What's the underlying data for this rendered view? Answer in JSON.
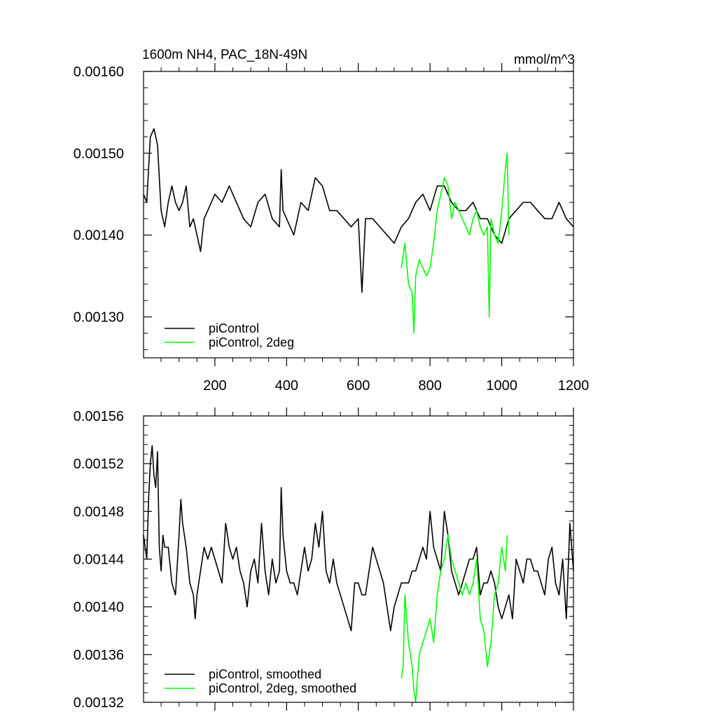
{
  "chart_data": [
    {
      "type": "line",
      "title": "1600m NH4, PAC_18N-49N",
      "units": "mmol/m^3",
      "xlim": [
        1,
        1200
      ],
      "ylim": [
        0.00125,
        0.0016
      ],
      "x_ticks": [
        200,
        400,
        600,
        800,
        1000,
        1200
      ],
      "x_tick_labels": [
        "200",
        "400",
        "600",
        "800",
        "1000",
        "1200"
      ],
      "y_ticks": [
        0.0013,
        0.0014,
        0.0015,
        0.0016
      ],
      "y_tick_labels": [
        "0.00130",
        "0.00140",
        "0.00150",
        "0.00160"
      ],
      "legend_position": "bottom-left",
      "series": [
        {
          "name": "piControl",
          "color": "#000000",
          "x": [
            1,
            10,
            20,
            30,
            40,
            50,
            60,
            70,
            80,
            90,
            100,
            110,
            120,
            130,
            140,
            150,
            160,
            170,
            180,
            200,
            220,
            240,
            260,
            280,
            300,
            320,
            340,
            360,
            380,
            385,
            390,
            400,
            420,
            440,
            460,
            480,
            500,
            520,
            540,
            560,
            580,
            600,
            610,
            620,
            640,
            660,
            680,
            700,
            720,
            740,
            760,
            780,
            800,
            820,
            840,
            860,
            880,
            900,
            920,
            940,
            960,
            980,
            1000,
            1020,
            1040,
            1060,
            1080,
            1100,
            1120,
            1140,
            1160,
            1180,
            1200
          ],
          "values": [
            0.00145,
            0.00144,
            0.00152,
            0.00153,
            0.00151,
            0.00143,
            0.00141,
            0.00144,
            0.00146,
            0.00144,
            0.00143,
            0.00144,
            0.00146,
            0.00141,
            0.00142,
            0.0014,
            0.00138,
            0.00142,
            0.00143,
            0.00145,
            0.00144,
            0.00146,
            0.00144,
            0.00142,
            0.00141,
            0.00144,
            0.00145,
            0.00142,
            0.00141,
            0.00148,
            0.00143,
            0.00142,
            0.0014,
            0.00144,
            0.00143,
            0.00147,
            0.00146,
            0.00143,
            0.00143,
            0.00142,
            0.00141,
            0.00142,
            0.00133,
            0.00142,
            0.00142,
            0.00141,
            0.0014,
            0.00139,
            0.00141,
            0.00142,
            0.00144,
            0.00145,
            0.00143,
            0.00146,
            0.00146,
            0.00144,
            0.00143,
            0.00143,
            0.00144,
            0.00142,
            0.00142,
            0.0014,
            0.00139,
            0.00142,
            0.00143,
            0.00144,
            0.00144,
            0.00143,
            0.00142,
            0.00142,
            0.00144,
            0.00142,
            0.00141
          ]
        },
        {
          "name": "piControl, 2deg",
          "color": "#00ff00",
          "x": [
            720,
            730,
            740,
            750,
            755,
            760,
            770,
            780,
            790,
            800,
            810,
            820,
            830,
            840,
            850,
            860,
            870,
            880,
            890,
            900,
            910,
            920,
            930,
            940,
            950,
            960,
            965,
            970,
            980,
            990,
            1000,
            1010,
            1015,
            1020
          ],
          "values": [
            0.00136,
            0.00139,
            0.00134,
            0.00133,
            0.00128,
            0.00135,
            0.00137,
            0.00136,
            0.00135,
            0.00136,
            0.00139,
            0.00143,
            0.00145,
            0.00147,
            0.00146,
            0.00142,
            0.00144,
            0.00143,
            0.00142,
            0.00141,
            0.0014,
            0.00142,
            0.00143,
            0.00141,
            0.0014,
            0.00141,
            0.0013,
            0.00142,
            0.0014,
            0.00139,
            0.00143,
            0.00148,
            0.0015,
            0.0014
          ]
        }
      ]
    },
    {
      "type": "line",
      "title": "",
      "xlim": [
        1,
        1200
      ],
      "ylim": [
        0.00132,
        0.00156
      ],
      "x_ticks": [
        200,
        400,
        600,
        800,
        1000,
        1200
      ],
      "y_ticks": [
        0.00132,
        0.00136,
        0.0014,
        0.00144,
        0.00148,
        0.00152,
        0.00156
      ],
      "y_tick_labels": [
        "0.00132",
        "0.00136",
        "0.00140",
        "0.00144",
        "0.00148",
        "0.00152",
        "0.00156"
      ],
      "legend_position": "bottom-left",
      "series": [
        {
          "name": "piControl, smoothed",
          "color": "#000000",
          "x": [
            1,
            10,
            15,
            20,
            25,
            30,
            35,
            40,
            45,
            50,
            55,
            60,
            70,
            80,
            90,
            100,
            105,
            110,
            120,
            130,
            140,
            145,
            150,
            160,
            170,
            180,
            190,
            200,
            210,
            220,
            230,
            240,
            250,
            260,
            270,
            280,
            290,
            300,
            310,
            320,
            330,
            340,
            350,
            360,
            370,
            380,
            385,
            390,
            400,
            410,
            420,
            430,
            440,
            450,
            460,
            470,
            480,
            490,
            500,
            510,
            520,
            530,
            540,
            550,
            560,
            570,
            580,
            590,
            600,
            610,
            620,
            630,
            640,
            650,
            660,
            670,
            680,
            690,
            700,
            710,
            720,
            730,
            740,
            750,
            760,
            770,
            780,
            790,
            800,
            810,
            820,
            830,
            840,
            850,
            860,
            870,
            880,
            890,
            900,
            910,
            920,
            930,
            940,
            950,
            960,
            970,
            980,
            990,
            1000,
            1010,
            1020,
            1030,
            1040,
            1050,
            1060,
            1070,
            1080,
            1090,
            1100,
            1110,
            1120,
            1130,
            1140,
            1150,
            1160,
            1170,
            1180,
            1190,
            1200
          ],
          "values": [
            0.00146,
            0.00144,
            0.00149,
            0.00152,
            0.001535,
            0.00151,
            0.0015,
            0.00153,
            0.00145,
            0.00143,
            0.00146,
            0.00145,
            0.00145,
            0.00142,
            0.00141,
            0.00146,
            0.00149,
            0.00147,
            0.00145,
            0.00142,
            0.00141,
            0.00139,
            0.00141,
            0.00143,
            0.00145,
            0.00144,
            0.00145,
            0.00144,
            0.00143,
            0.00142,
            0.00147,
            0.00145,
            0.00144,
            0.00145,
            0.00143,
            0.00142,
            0.0014,
            0.00143,
            0.00144,
            0.00142,
            0.00147,
            0.00143,
            0.00141,
            0.00144,
            0.00142,
            0.00143,
            0.0015,
            0.00146,
            0.00143,
            0.00142,
            0.00142,
            0.00141,
            0.00143,
            0.00145,
            0.00143,
            0.00144,
            0.00147,
            0.00145,
            0.00148,
            0.00143,
            0.00142,
            0.00144,
            0.00142,
            0.00141,
            0.0014,
            0.00139,
            0.00138,
            0.00142,
            0.00142,
            0.00141,
            0.00141,
            0.00143,
            0.00145,
            0.00144,
            0.00143,
            0.00142,
            0.0014,
            0.00138,
            0.0014,
            0.00141,
            0.00142,
            0.00142,
            0.00142,
            0.00143,
            0.00143,
            0.00144,
            0.00145,
            0.00144,
            0.00148,
            0.00145,
            0.00144,
            0.00143,
            0.00148,
            0.00146,
            0.00143,
            0.00142,
            0.00141,
            0.00142,
            0.00143,
            0.00144,
            0.00144,
            0.00145,
            0.00141,
            0.00142,
            0.00142,
            0.00143,
            0.00142,
            0.0014,
            0.00139,
            0.0014,
            0.00141,
            0.00139,
            0.00144,
            0.00143,
            0.00142,
            0.00144,
            0.00144,
            0.00143,
            0.00143,
            0.00142,
            0.00141,
            0.00144,
            0.00145,
            0.00142,
            0.00141,
            0.00144,
            0.00139,
            0.00147,
            0.00143
          ]
        },
        {
          "name": "piControl, 2deg, smoothed",
          "color": "#00ff00",
          "x": [
            720,
            725,
            730,
            740,
            745,
            750,
            755,
            760,
            765,
            770,
            780,
            790,
            800,
            810,
            820,
            830,
            840,
            850,
            860,
            870,
            880,
            890,
            900,
            910,
            920,
            930,
            940,
            950,
            960,
            970,
            980,
            990,
            1000,
            1010,
            1015
          ],
          "values": [
            0.00134,
            0.00135,
            0.00141,
            0.00137,
            0.00136,
            0.00135,
            0.00133,
            0.00132,
            0.00134,
            0.00136,
            0.00137,
            0.00138,
            0.00139,
            0.00137,
            0.00141,
            0.00143,
            0.00144,
            0.00146,
            0.00144,
            0.00143,
            0.00142,
            0.00141,
            0.00142,
            0.00141,
            0.00142,
            0.00144,
            0.00139,
            0.00138,
            0.00135,
            0.00137,
            0.00141,
            0.00142,
            0.00145,
            0.00143,
            0.00146
          ]
        }
      ]
    }
  ]
}
